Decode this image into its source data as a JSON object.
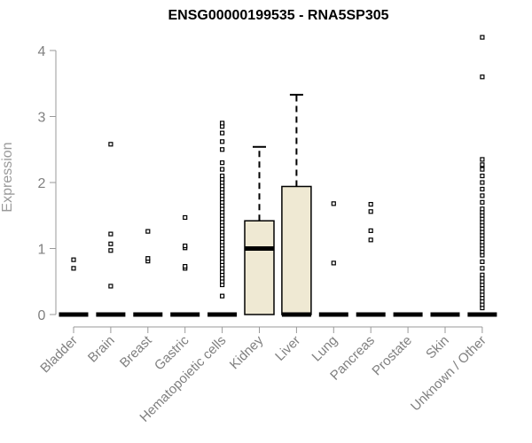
{
  "chart_data": {
    "type": "box",
    "title": "ENSG00000199535 - RNA5SP305",
    "ylabel": "Expression",
    "xlabel": "",
    "ylim": [
      0,
      4.2
    ],
    "yticks": [
      0,
      1,
      2,
      3,
      4
    ],
    "grid": false,
    "colors": {
      "box_fill": "#efe9d3",
      "stroke": "#000000",
      "axis": "#9a9a9a",
      "tick_text": "#808080"
    },
    "categories": [
      "Bladder",
      "Brain",
      "Breast",
      "Gastric",
      "Hematopoietic cells",
      "Kidney",
      "Liver",
      "Lung",
      "Pancreas",
      "Prostate",
      "Skin",
      "Unknown / Other"
    ],
    "boxes": [
      {
        "name": "Bladder",
        "q1": 0,
        "median": 0,
        "q3": 0,
        "whisker_low": 0,
        "whisker_high": 0,
        "outliers": [
          0.7,
          0.83
        ]
      },
      {
        "name": "Brain",
        "q1": 0,
        "median": 0,
        "q3": 0,
        "whisker_low": 0,
        "whisker_high": 0,
        "outliers": [
          0.43,
          0.97,
          1.07,
          1.22,
          2.58
        ]
      },
      {
        "name": "Breast",
        "q1": 0,
        "median": 0,
        "q3": 0,
        "whisker_low": 0,
        "whisker_high": 0,
        "outliers": [
          0.81,
          0.85,
          1.26
        ]
      },
      {
        "name": "Gastric",
        "q1": 0,
        "median": 0,
        "q3": 0,
        "whisker_low": 0,
        "whisker_high": 0,
        "outliers": [
          0.7,
          0.73,
          1.01,
          1.04,
          1.47
        ]
      },
      {
        "name": "Hematopoietic cells",
        "q1": 0,
        "median": 0,
        "q3": 0,
        "whisker_low": 0,
        "whisker_high": 0,
        "outliers": [
          0.28,
          0.45,
          0.5,
          0.55,
          0.6,
          0.65,
          0.7,
          0.75,
          0.8,
          0.85,
          0.9,
          0.95,
          1.0,
          1.05,
          1.1,
          1.15,
          1.2,
          1.25,
          1.3,
          1.35,
          1.4,
          1.45,
          1.5,
          1.55,
          1.6,
          1.65,
          1.7,
          1.75,
          1.8,
          1.85,
          1.9,
          1.95,
          2.0,
          2.05,
          2.1,
          2.2,
          2.3,
          2.5,
          2.62,
          2.75,
          2.85,
          2.9
        ]
      },
      {
        "name": "Kidney",
        "q1": 0,
        "median": 1.0,
        "q3": 1.42,
        "whisker_low": 0,
        "whisker_high": 2.54,
        "outliers": []
      },
      {
        "name": "Liver",
        "q1": 0,
        "median": 0,
        "q3": 1.94,
        "whisker_low": 0,
        "whisker_high": 3.33,
        "outliers": []
      },
      {
        "name": "Lung",
        "q1": 0,
        "median": 0,
        "q3": 0,
        "whisker_low": 0,
        "whisker_high": 0,
        "outliers": [
          0.78,
          1.68
        ]
      },
      {
        "name": "Pancreas",
        "q1": 0,
        "median": 0,
        "q3": 0,
        "whisker_low": 0,
        "whisker_high": 0,
        "outliers": [
          1.13,
          1.27,
          1.56,
          1.67
        ]
      },
      {
        "name": "Prostate",
        "q1": 0,
        "median": 0,
        "q3": 0,
        "whisker_low": 0,
        "whisker_high": 0,
        "outliers": []
      },
      {
        "name": "Skin",
        "q1": 0,
        "median": 0,
        "q3": 0,
        "whisker_low": 0,
        "whisker_high": 0,
        "outliers": []
      },
      {
        "name": "Unknown / Other",
        "q1": 0,
        "median": 0,
        "q3": 0,
        "whisker_low": 0,
        "whisker_high": 0,
        "outliers": [
          0.1,
          0.15,
          0.2,
          0.25,
          0.3,
          0.35,
          0.4,
          0.45,
          0.5,
          0.55,
          0.6,
          0.7,
          0.8,
          0.9,
          0.95,
          1.0,
          1.05,
          1.1,
          1.15,
          1.2,
          1.25,
          1.3,
          1.35,
          1.4,
          1.45,
          1.5,
          1.55,
          1.6,
          1.7,
          1.8,
          1.9,
          2.0,
          2.1,
          2.2,
          2.27,
          2.35,
          3.6,
          4.2
        ]
      }
    ]
  }
}
